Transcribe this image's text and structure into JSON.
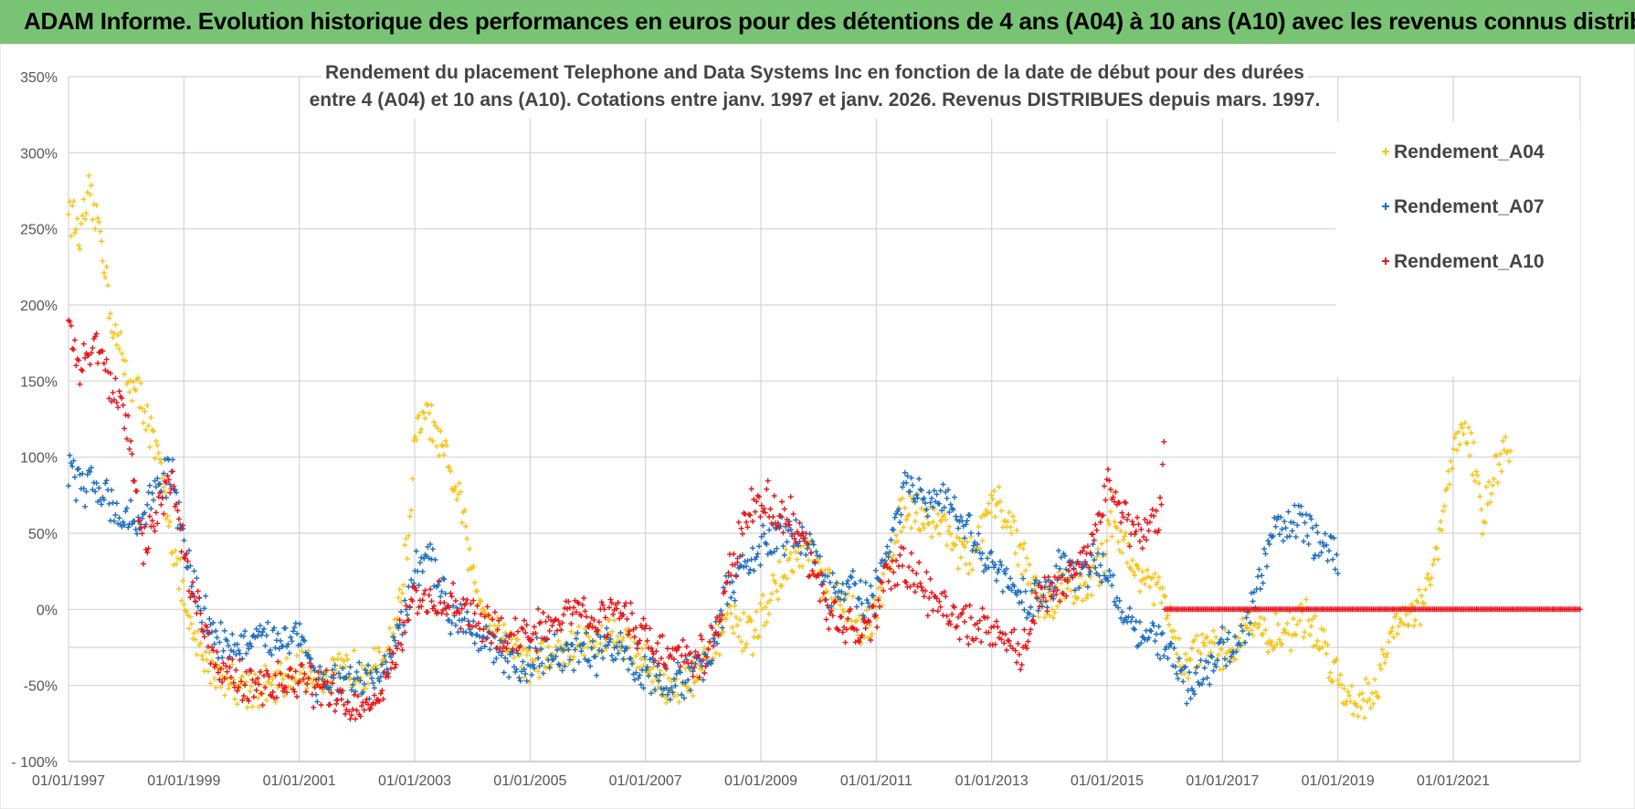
{
  "header": {
    "title": "ADAM Informe. Evolution historique des performances en euros pour des détentions de 4 ans (A04) à 10 ans (A10) avec les revenus connus distribués"
  },
  "chart_data": {
    "type": "scatter",
    "title_lines": [
      "Rendement du placement Telephone and Data Systems Inc en fonction de la date de début pour des durées",
      "entre 4 (A04) et 10 ans (A10).  Cotations entre janv. 1997 et janv. 2026. Revenus DISTRIBUES depuis mars. 1997."
    ],
    "x_start_year": 1997,
    "x_end_year": 2023.2,
    "x_tick_years": [
      1997,
      1999,
      2001,
      2003,
      2005,
      2007,
      2009,
      2011,
      2013,
      2015,
      2017,
      2019,
      2021
    ],
    "x_tick_labels": [
      "01/01/1997",
      "01/01/1999",
      "01/01/2001",
      "01/01/2003",
      "01/01/2005",
      "01/01/2007",
      "01/01/2009",
      "01/01/2011",
      "01/01/2013",
      "01/01/2015",
      "01/01/2017",
      "01/01/2019",
      "01/01/2021"
    ],
    "y_ticks": [
      -100,
      -50,
      0,
      50,
      100,
      150,
      200,
      250,
      300,
      350
    ],
    "y_tick_labels": [
      "- 100%",
      "-50%",
      "0%",
      "50%",
      "100%",
      "150%",
      "200%",
      "250%",
      "300%",
      "350%"
    ],
    "ylim": [
      -100,
      350
    ],
    "grid": true,
    "legend_position": "top-right",
    "series": [
      {
        "name": "Rendement_A04",
        "color": "#f5c518",
        "x_end": 2022.0,
        "points": [
          [
            1997.0,
            265
          ],
          [
            1997.2,
            245
          ],
          [
            1997.35,
            270
          ],
          [
            1997.55,
            250
          ],
          [
            1997.75,
            190
          ],
          [
            1998.0,
            155
          ],
          [
            1998.3,
            135
          ],
          [
            1998.6,
            90
          ],
          [
            1998.85,
            35
          ],
          [
            1999.1,
            -15
          ],
          [
            1999.4,
            -35
          ],
          [
            1999.7,
            -45
          ],
          [
            2000.0,
            -50
          ],
          [
            2000.5,
            -52
          ],
          [
            2001.0,
            -40
          ],
          [
            2001.5,
            -45
          ],
          [
            2002.0,
            -38
          ],
          [
            2002.4,
            -38
          ],
          [
            2002.7,
            -5
          ],
          [
            2002.9,
            50
          ],
          [
            2003.0,
            110
          ],
          [
            2003.2,
            130
          ],
          [
            2003.5,
            100
          ],
          [
            2003.8,
            70
          ],
          [
            2004.0,
            20
          ],
          [
            2004.3,
            -5
          ],
          [
            2004.6,
            -20
          ],
          [
            2005.0,
            -35
          ],
          [
            2005.5,
            -30
          ],
          [
            2006.0,
            -20
          ],
          [
            2006.5,
            -15
          ],
          [
            2007.0,
            -35
          ],
          [
            2007.4,
            -55
          ],
          [
            2007.8,
            -45
          ],
          [
            2008.1,
            -35
          ],
          [
            2008.4,
            -5
          ],
          [
            2008.8,
            -20
          ],
          [
            2009.0,
            -5
          ],
          [
            2009.4,
            25
          ],
          [
            2009.8,
            40
          ],
          [
            2010.1,
            15
          ],
          [
            2010.5,
            0
          ],
          [
            2010.9,
            -15
          ],
          [
            2011.2,
            30
          ],
          [
            2011.5,
            70
          ],
          [
            2011.9,
            60
          ],
          [
            2012.2,
            55
          ],
          [
            2012.6,
            30
          ],
          [
            2012.9,
            60
          ],
          [
            2013.1,
            70
          ],
          [
            2013.4,
            50
          ],
          [
            2013.7,
            15
          ],
          [
            2014.0,
            0
          ],
          [
            2014.3,
            20
          ],
          [
            2014.6,
            10
          ],
          [
            2014.9,
            30
          ],
          [
            2015.1,
            65
          ],
          [
            2015.4,
            30
          ],
          [
            2015.7,
            20
          ],
          [
            2016.0,
            5
          ],
          [
            2016.3,
            -40
          ],
          [
            2016.6,
            -25
          ],
          [
            2016.9,
            -30
          ],
          [
            2017.2,
            -25
          ],
          [
            2017.5,
            -5
          ],
          [
            2017.8,
            -20
          ],
          [
            2018.1,
            -15
          ],
          [
            2018.4,
            -5
          ],
          [
            2018.7,
            -20
          ],
          [
            2018.9,
            -35
          ],
          [
            2019.1,
            -55
          ],
          [
            2019.4,
            -60
          ],
          [
            2019.7,
            -50
          ],
          [
            2020.0,
            -5
          ],
          [
            2020.4,
            0
          ],
          [
            2020.7,
            30
          ],
          [
            2020.9,
            80
          ],
          [
            2021.1,
            120
          ],
          [
            2021.3,
            110
          ],
          [
            2021.5,
            60
          ],
          [
            2021.7,
            90
          ],
          [
            2022.0,
            110
          ]
        ]
      },
      {
        "name": "Rendement_A07",
        "color": "#1f6fbf",
        "x_end": 2019.0,
        "points": [
          [
            1997.0,
            90
          ],
          [
            1997.3,
            80
          ],
          [
            1997.6,
            80
          ],
          [
            1997.9,
            60
          ],
          [
            1998.2,
            55
          ],
          [
            1998.5,
            80
          ],
          [
            1998.8,
            90
          ],
          [
            1999.0,
            40
          ],
          [
            1999.3,
            0
          ],
          [
            1999.6,
            -20
          ],
          [
            2000.0,
            -25
          ],
          [
            2000.5,
            -20
          ],
          [
            2001.0,
            -15
          ],
          [
            2001.3,
            -45
          ],
          [
            2001.7,
            -50
          ],
          [
            2002.0,
            -50
          ],
          [
            2002.4,
            -45
          ],
          [
            2002.8,
            -10
          ],
          [
            2003.0,
            25
          ],
          [
            2003.3,
            30
          ],
          [
            2003.6,
            0
          ],
          [
            2004.0,
            -10
          ],
          [
            2004.4,
            -25
          ],
          [
            2004.8,
            -40
          ],
          [
            2005.2,
            -30
          ],
          [
            2005.6,
            -30
          ],
          [
            2006.0,
            -30
          ],
          [
            2006.5,
            -25
          ],
          [
            2007.0,
            -40
          ],
          [
            2007.4,
            -50
          ],
          [
            2007.8,
            -45
          ],
          [
            2008.1,
            -30
          ],
          [
            2008.4,
            10
          ],
          [
            2008.8,
            30
          ],
          [
            2009.1,
            45
          ],
          [
            2009.5,
            50
          ],
          [
            2009.9,
            40
          ],
          [
            2010.2,
            10
          ],
          [
            2010.6,
            15
          ],
          [
            2010.9,
            0
          ],
          [
            2011.2,
            40
          ],
          [
            2011.5,
            80
          ],
          [
            2011.9,
            70
          ],
          [
            2012.2,
            70
          ],
          [
            2012.6,
            50
          ],
          [
            2012.9,
            35
          ],
          [
            2013.2,
            20
          ],
          [
            2013.5,
            5
          ],
          [
            2013.9,
            10
          ],
          [
            2014.2,
            30
          ],
          [
            2014.6,
            25
          ],
          [
            2014.9,
            30
          ],
          [
            2015.2,
            5
          ],
          [
            2015.5,
            -10
          ],
          [
            2015.8,
            -20
          ],
          [
            2016.1,
            -30
          ],
          [
            2016.4,
            -50
          ],
          [
            2016.7,
            -40
          ],
          [
            2017.0,
            -25
          ],
          [
            2017.3,
            -20
          ],
          [
            2017.6,
            10
          ],
          [
            2017.9,
            55
          ],
          [
            2018.2,
            60
          ],
          [
            2018.5,
            50
          ],
          [
            2018.8,
            40
          ],
          [
            2019.0,
            30
          ]
        ]
      },
      {
        "name": "Rendement_A10",
        "color": "#e8161b",
        "x_end": 2016.0,
        "points": [
          [
            1997.0,
            190
          ],
          [
            1997.2,
            160
          ],
          [
            1997.5,
            175
          ],
          [
            1997.7,
            150
          ],
          [
            1998.0,
            125
          ],
          [
            1998.3,
            40
          ],
          [
            1998.6,
            70
          ],
          [
            1998.8,
            85
          ],
          [
            1999.0,
            40
          ],
          [
            1999.3,
            -10
          ],
          [
            1999.6,
            -35
          ],
          [
            2000.0,
            -50
          ],
          [
            2000.5,
            -50
          ],
          [
            2001.0,
            -45
          ],
          [
            2001.5,
            -55
          ],
          [
            2002.0,
            -65
          ],
          [
            2002.4,
            -55
          ],
          [
            2002.8,
            -15
          ],
          [
            2003.0,
            5
          ],
          [
            2003.4,
            5
          ],
          [
            2003.8,
            0
          ],
          [
            2004.2,
            -10
          ],
          [
            2004.6,
            -20
          ],
          [
            2005.0,
            -15
          ],
          [
            2005.4,
            -10
          ],
          [
            2005.8,
            0
          ],
          [
            2006.2,
            -5
          ],
          [
            2006.6,
            0
          ],
          [
            2007.0,
            -20
          ],
          [
            2007.4,
            -30
          ],
          [
            2007.8,
            -35
          ],
          [
            2008.1,
            -30
          ],
          [
            2008.4,
            15
          ],
          [
            2008.8,
            65
          ],
          [
            2009.1,
            70
          ],
          [
            2009.5,
            60
          ],
          [
            2009.9,
            30
          ],
          [
            2010.2,
            -5
          ],
          [
            2010.6,
            -10
          ],
          [
            2010.9,
            -15
          ],
          [
            2011.2,
            20
          ],
          [
            2011.5,
            30
          ],
          [
            2011.9,
            10
          ],
          [
            2012.2,
            0
          ],
          [
            2012.6,
            -10
          ],
          [
            2012.9,
            -10
          ],
          [
            2013.2,
            -20
          ],
          [
            2013.5,
            -30
          ],
          [
            2013.8,
            10
          ],
          [
            2014.1,
            10
          ],
          [
            2014.4,
            25
          ],
          [
            2014.7,
            40
          ],
          [
            2015.0,
            85
          ],
          [
            2015.3,
            60
          ],
          [
            2015.6,
            45
          ],
          [
            2015.9,
            60
          ],
          [
            2016.0,
            110
          ]
        ]
      }
    ],
    "flat_series": {
      "name": "Rendement_A10",
      "color": "#e8161b",
      "x_start": 2016.0,
      "x_end": 2023.2,
      "value": 0
    },
    "legend": [
      {
        "name": "Rendement_A04",
        "color": "#f5c518"
      },
      {
        "name": "Rendement_A07",
        "color": "#1f6fbf"
      },
      {
        "name": "Rendement_A10",
        "color": "#e8161b"
      }
    ]
  }
}
